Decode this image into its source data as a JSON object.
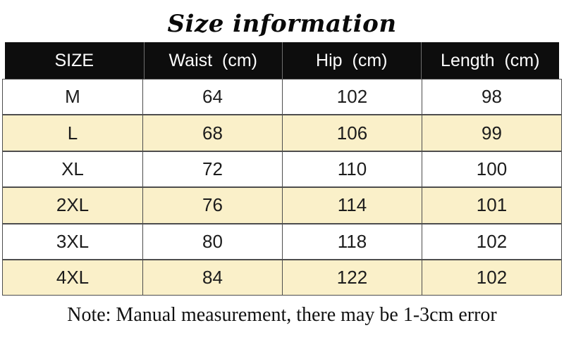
{
  "title": "Size information",
  "note": "Note: Manual measurement, there may be 1-3cm error",
  "chart_data": {
    "type": "table",
    "title": "Size information",
    "columns": [
      "SIZE",
      "Waist (cm)",
      "Hip (cm)",
      "Length (cm)"
    ],
    "rows": [
      [
        "M",
        64,
        102,
        98
      ],
      [
        "L",
        68,
        106,
        99
      ],
      [
        "XL",
        72,
        110,
        100
      ],
      [
        "2XL",
        76,
        114,
        101
      ],
      [
        "3XL",
        80,
        118,
        102
      ],
      [
        "4XL",
        84,
        122,
        102
      ]
    ],
    "note": "Note: Manual measurement, there may be 1-3cm error",
    "layout": {
      "header_style": "black-bar",
      "row_striping": "white-cream-alternating",
      "grid": "on"
    }
  },
  "colors": {
    "header_bg": "#0d0d0d",
    "header_text": "#fdfdfd",
    "row_alt_bg": "#faf0c9",
    "border": "#4d4d4d"
  }
}
